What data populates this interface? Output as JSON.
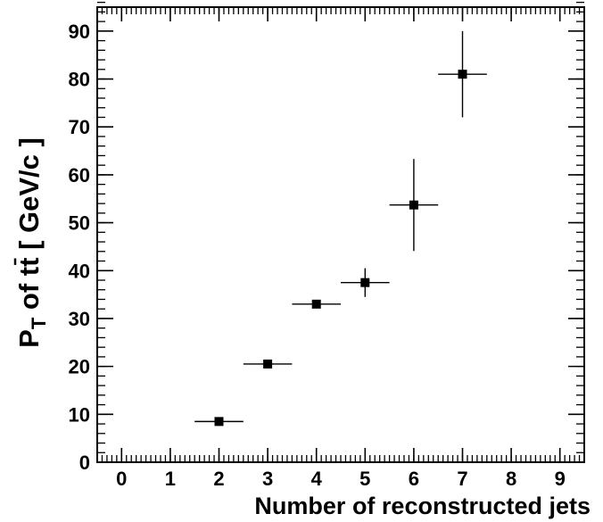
{
  "chart_data": {
    "type": "scatter",
    "title": "",
    "xlabel": "Number of reconstructed jets",
    "ylabel": {
      "p": "P",
      "sub": "T",
      "middle": " of t",
      "tbar": "t",
      "unit": " [ GeV/c ]"
    },
    "xlim": [
      -0.5,
      9.5
    ],
    "ylim": [
      0,
      95
    ],
    "xticks": [
      0,
      1,
      2,
      3,
      4,
      5,
      6,
      7,
      8,
      9
    ],
    "yticks": [
      0,
      10,
      20,
      30,
      40,
      50,
      60,
      70,
      80,
      90
    ],
    "x_minor_step": 0.1,
    "y_minor_step": 2,
    "grid": false,
    "legend": "none",
    "marker": "square",
    "color": "#000000",
    "points": [
      {
        "x": 2,
        "y": 8.5,
        "xerr": 0.5,
        "yerr": 0.6
      },
      {
        "x": 3,
        "y": 20.5,
        "xerr": 0.5,
        "yerr": 0.6
      },
      {
        "x": 4,
        "y": 33.0,
        "xerr": 0.5,
        "yerr": 0.6
      },
      {
        "x": 5,
        "y": 37.5,
        "xerr": 0.5,
        "yerr": 3.0
      },
      {
        "x": 6,
        "y": 53.7,
        "xerr": 0.5,
        "yerr": 9.6
      },
      {
        "x": 7,
        "y": 81.0,
        "xerr": 0.5,
        "yerr": 9.0
      }
    ]
  }
}
